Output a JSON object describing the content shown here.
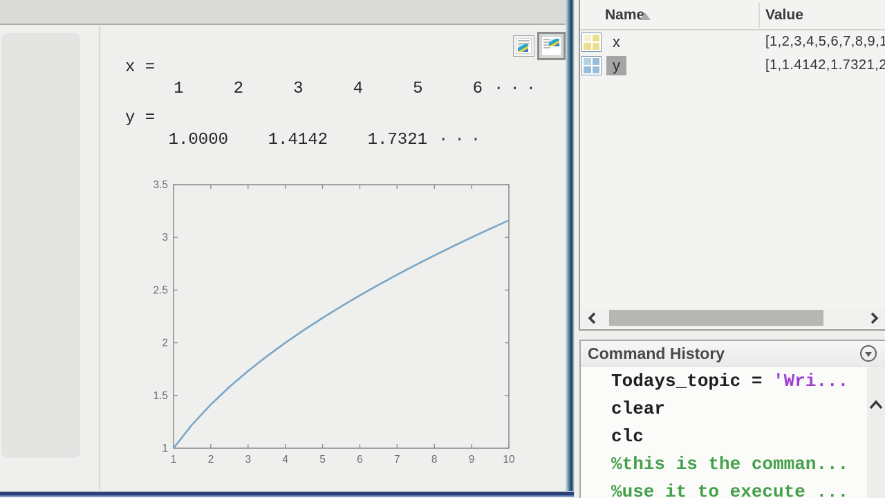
{
  "editor": {
    "output": {
      "x_label": "x =",
      "x_values": [
        "1",
        "2",
        "3",
        "4",
        "5",
        "6"
      ],
      "x_ellipsis": "···",
      "y_label": "y =",
      "y_values": [
        "1.0000",
        "1.4142",
        "1.7321"
      ],
      "y_ellipsis": "···"
    },
    "toolbar_icons": {
      "output_inline": "document-with-chart-below",
      "output_side_by_side": "document-with-chart-right",
      "selected": "output_side_by_side"
    }
  },
  "chart_data": {
    "type": "line",
    "title": "",
    "xlabel": "",
    "ylabel": "",
    "description": "y = sqrt(x), plotted from x=1 to x=10",
    "xlim": [
      1,
      10
    ],
    "ylim": [
      1,
      3.5
    ],
    "x_ticks": [
      1,
      2,
      3,
      4,
      5,
      6,
      7,
      8,
      9,
      10
    ],
    "y_ticks": [
      1,
      1.5,
      2,
      2.5,
      3,
      3.5
    ],
    "x": [
      1,
      1.5,
      2,
      2.5,
      3,
      3.5,
      4,
      4.5,
      5,
      5.5,
      6,
      6.5,
      7,
      7.5,
      8,
      8.5,
      9,
      9.5,
      10
    ],
    "y": [
      1.0,
      1.2247,
      1.4142,
      1.5811,
      1.7321,
      1.8708,
      2.0,
      2.1213,
      2.2361,
      2.3452,
      2.4495,
      2.5495,
      2.6458,
      2.7386,
      2.8284,
      2.9155,
      3.0,
      3.0822,
      3.1623
    ],
    "line_color": "#7aa6c8",
    "axis_color": "#8f8f8f",
    "tick_label_color": "#6e6e6e",
    "grid": false,
    "legend": null
  },
  "workspace": {
    "columns": [
      "Name",
      "Value"
    ],
    "sort": {
      "column": "Name",
      "direction": "ascending",
      "icon": "▲"
    },
    "rows": [
      {
        "name": "x",
        "value": "[1,2,3,4,5,6,7,8,9,1",
        "icon": "numeric-matrix-icon-yellow",
        "selected": false
      },
      {
        "name": "y",
        "value": "[1,1.4142,1.7321,2",
        "icon": "numeric-matrix-icon-blue",
        "selected": true
      }
    ]
  },
  "command_history": {
    "title": "Command History",
    "items": [
      {
        "segments": [
          {
            "text": "Todays_topic = ",
            "color": "#1f1f1f"
          },
          {
            "text": "'Wri...",
            "color": "#a13fd4"
          }
        ]
      },
      {
        "segments": [
          {
            "text": "clear",
            "color": "#1f1f1f"
          }
        ]
      },
      {
        "segments": [
          {
            "text": "clc",
            "color": "#1f1f1f"
          }
        ]
      },
      {
        "segments": [
          {
            "text": "%this is the comman...",
            "color": "#44a04a"
          }
        ]
      },
      {
        "segments": [
          {
            "text": "%use it to execute ...",
            "color": "#44a04a"
          }
        ]
      }
    ]
  },
  "colors": {
    "background": "#efefee",
    "top_strip": "#dadad9",
    "window_border_blue": "#2c4277",
    "panel_border": "#9b9b9a",
    "selection_gray": "#a5a5a3",
    "history_string": "#a13fd4",
    "history_comment": "#44a04a",
    "plot_line": "#7aa6c8"
  }
}
